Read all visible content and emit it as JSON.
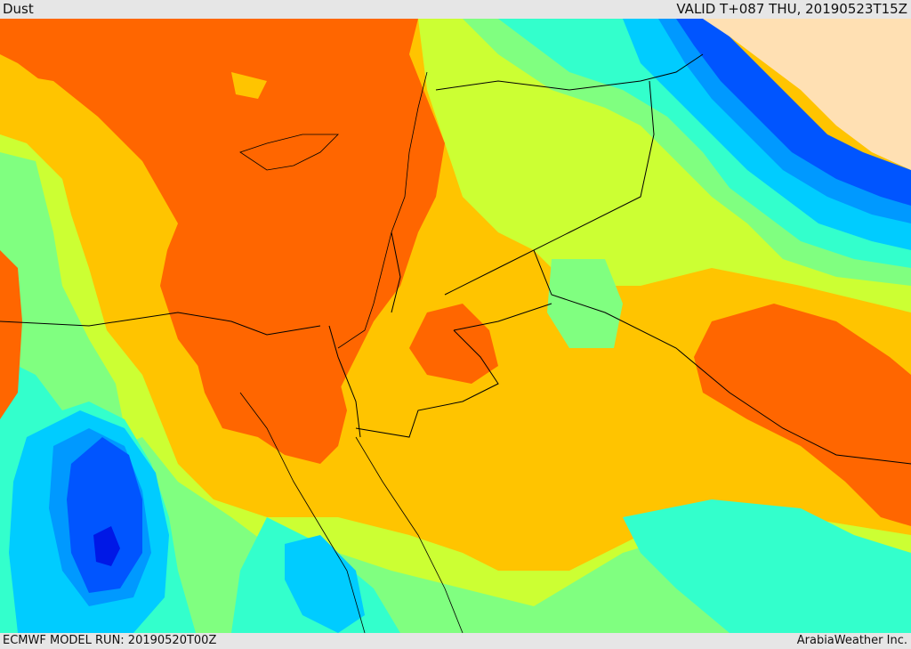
{
  "header": {
    "title": "Dust",
    "valid_time": "VALID T+087 THU, 20190523T15Z"
  },
  "footer": {
    "model_run": "ECMWF MODEL RUN: 20190520T00Z",
    "credit": "ArabiaWeather Inc."
  },
  "map": {
    "colors": {
      "land_clear": "#ffe0b3",
      "very_high": "#ff6600",
      "high": "#ffc400",
      "moderate_high": "#ccff33",
      "moderate": "#80ff80",
      "moderate_low": "#33ffcc",
      "low": "#00ccff",
      "lower": "#0099ff",
      "very_low": "#0055ff",
      "lowest": "#0018e6",
      "border": "#000000"
    }
  }
}
